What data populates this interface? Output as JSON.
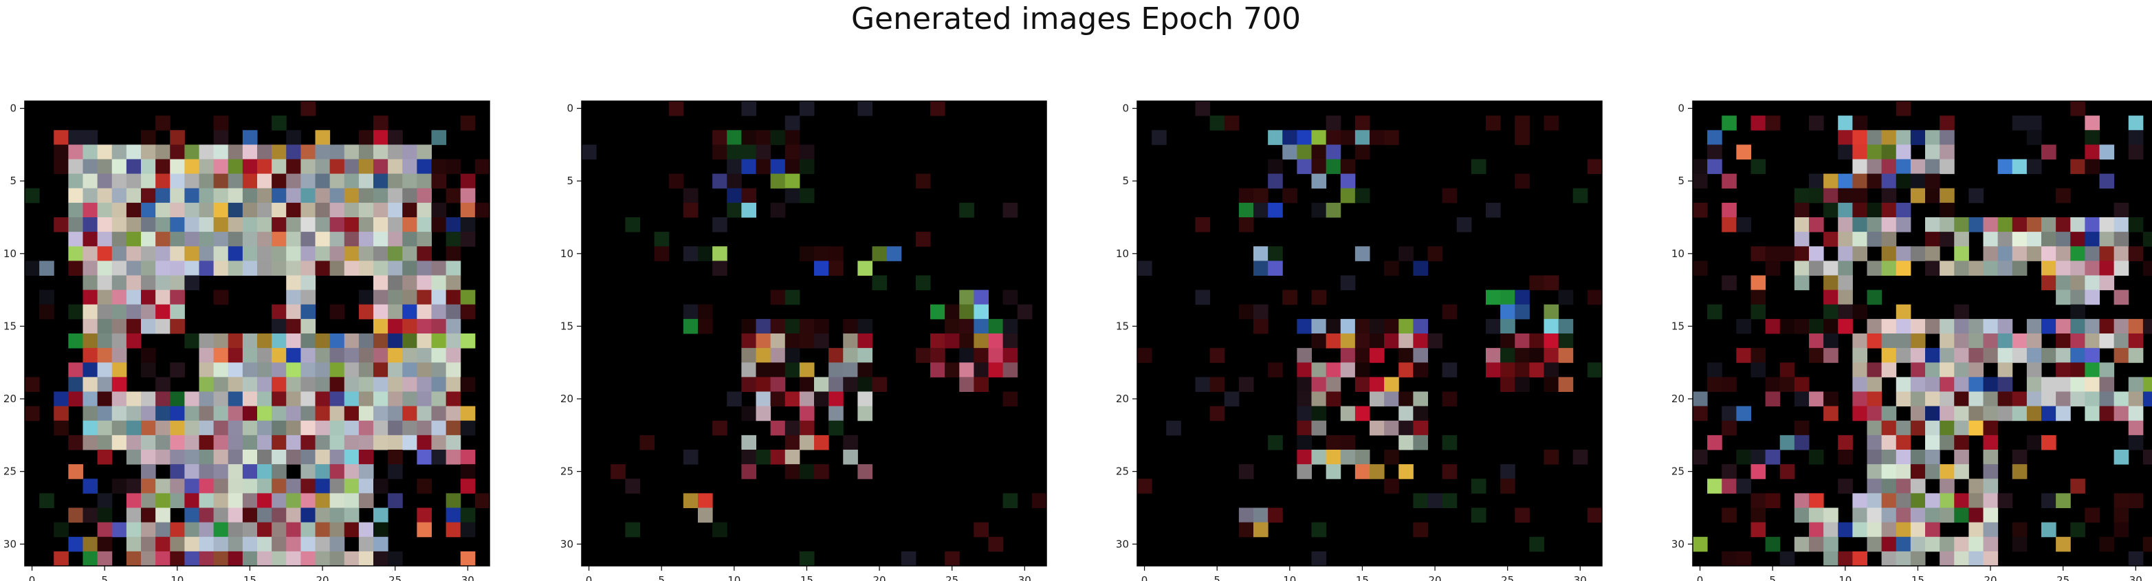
{
  "figure": {
    "title": "Generated images Epoch 700"
  },
  "chart_data": [
    {
      "type": "heatmap",
      "grid": [
        32,
        32
      ],
      "xticks": [
        "0",
        "5",
        "10",
        "15",
        "20",
        "25",
        "30"
      ],
      "yticks": [
        "0",
        "5",
        "10",
        "15",
        "20",
        "25",
        "30"
      ],
      "xlim": [
        -0.5,
        31.5
      ],
      "ylim": [
        31.5,
        -0.5
      ],
      "grid_lines": false,
      "pattern": "dense-figure",
      "seed": 7
    },
    {
      "type": "heatmap",
      "grid": [
        32,
        32
      ],
      "xticks": [
        "0",
        "5",
        "10",
        "15",
        "20",
        "25",
        "30"
      ],
      "yticks": [
        "0",
        "5",
        "10",
        "15",
        "20",
        "25",
        "30"
      ],
      "xlim": [
        -0.5,
        31.5
      ],
      "ylim": [
        31.5,
        -0.5
      ],
      "grid_lines": false,
      "pattern": "sparse-figure",
      "seed": 21
    },
    {
      "type": "heatmap",
      "grid": [
        32,
        32
      ],
      "xticks": [
        "0",
        "5",
        "10",
        "15",
        "20",
        "25",
        "30"
      ],
      "yticks": [
        "0",
        "5",
        "10",
        "15",
        "20",
        "25",
        "30"
      ],
      "xlim": [
        -0.5,
        31.5
      ],
      "ylim": [
        31.5,
        -0.5
      ],
      "grid_lines": false,
      "pattern": "sparse-figure",
      "seed": 22
    },
    {
      "type": "heatmap",
      "grid": [
        32,
        32
      ],
      "xticks": [
        "0",
        "5",
        "10",
        "15",
        "20",
        "25",
        "30"
      ],
      "yticks": [
        "0",
        "5",
        "10",
        "15",
        "20",
        "25",
        "30"
      ],
      "xlim": [
        -0.5,
        31.5
      ],
      "ylim": [
        31.5,
        -0.5
      ],
      "grid_lines": false,
      "pattern": "medium-figure",
      "seed": 33
    }
  ]
}
